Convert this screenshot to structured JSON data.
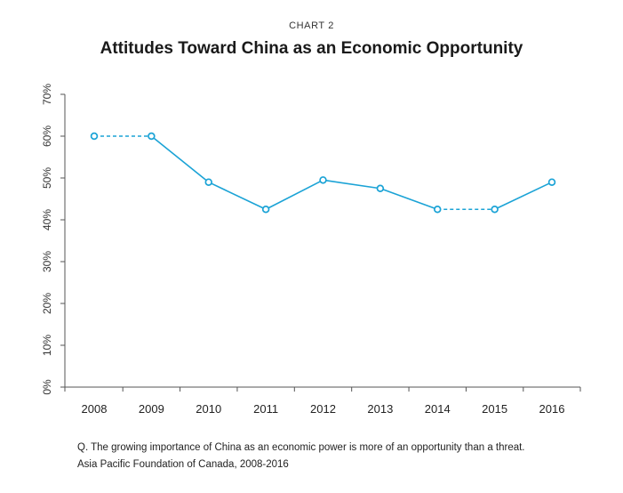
{
  "header": {
    "supertitle": "CHART 2",
    "title": "Attitudes Toward China as an Economic Opportunity"
  },
  "footer": {
    "note": "Q. The growing importance of China as an economic power is more of an opportunity than a threat.",
    "source": "Asia Pacific Foundation of Canada, 2008-2016"
  },
  "colors": {
    "series": "#1ba3d6",
    "axis": "#555555"
  },
  "chart_data": {
    "type": "line",
    "title": "Attitudes Toward China as an Economic Opportunity",
    "x": [
      "2008",
      "2009",
      "2010",
      "2011",
      "2012",
      "2013",
      "2014",
      "2015",
      "2016"
    ],
    "series": [
      {
        "values": [
          60,
          60,
          49,
          42.5,
          49.5,
          47.5,
          42.5,
          42.5,
          49
        ],
        "dashed_segments": [
          [
            0,
            1
          ],
          [
            6,
            7
          ]
        ]
      }
    ],
    "ylim": [
      0,
      70
    ],
    "yticks": [
      0,
      10,
      20,
      30,
      40,
      50,
      60,
      70
    ],
    "ytick_labels": [
      "0%",
      "10%",
      "20%",
      "30%",
      "40%",
      "50%",
      "60%",
      "70%"
    ],
    "grid": false,
    "legend": "none",
    "marker": "open-circle"
  }
}
